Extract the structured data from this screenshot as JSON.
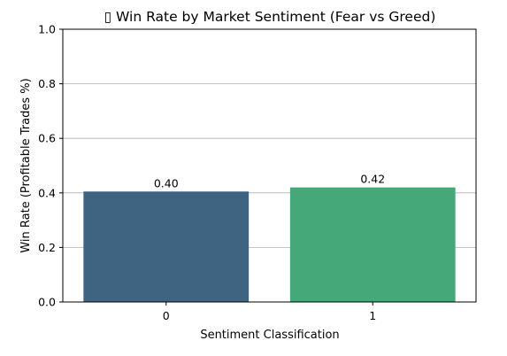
{
  "chart_data": {
    "type": "bar",
    "title": "▯ Win Rate by Market Sentiment (Fear vs Greed)",
    "xlabel": "Sentiment Classification",
    "ylabel": "Win Rate (Profitable Trades %)",
    "categories": [
      "0",
      "1"
    ],
    "values": [
      0.405,
      0.42
    ],
    "data_labels": [
      "0.40",
      "0.42"
    ],
    "bar_colors": [
      "#3e6482",
      "#45a878"
    ],
    "ylim": [
      0,
      1.0
    ],
    "yticks": [
      "0.0",
      "0.2",
      "0.4",
      "0.6",
      "0.8",
      "1.0"
    ],
    "grid": "y"
  }
}
